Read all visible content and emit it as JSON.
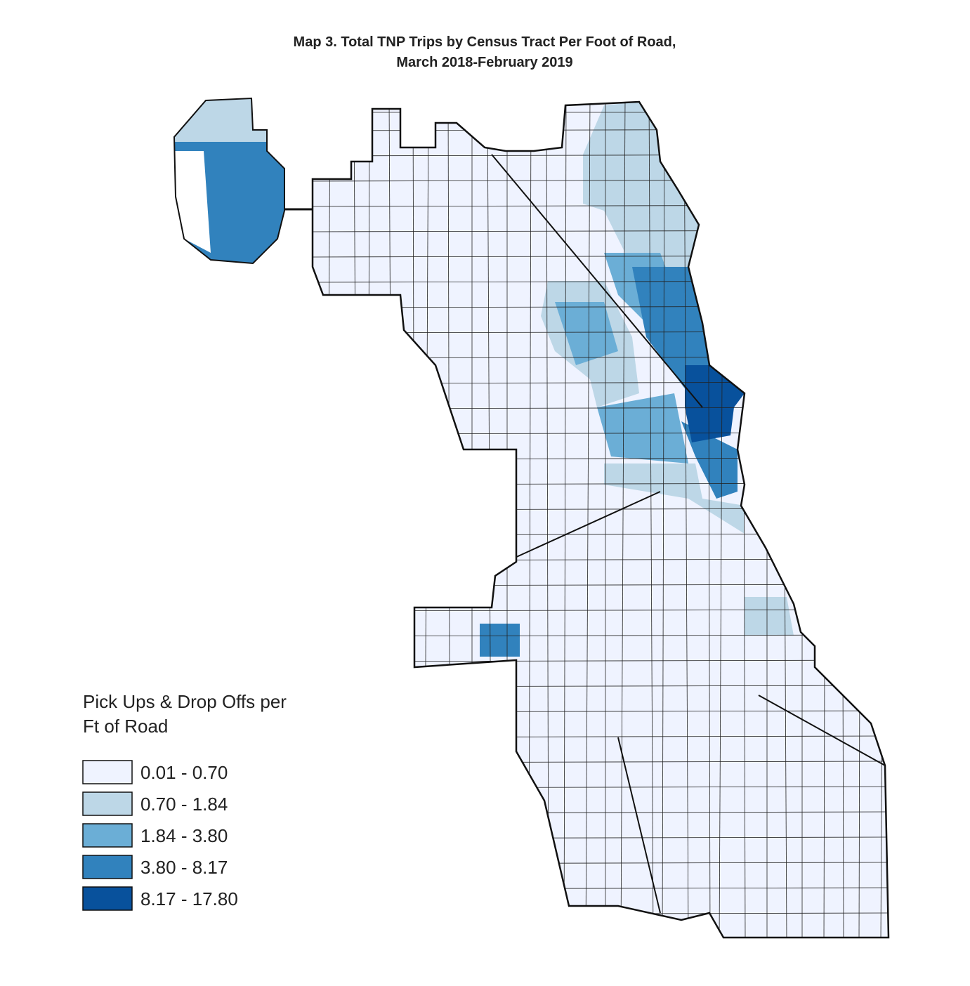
{
  "title": {
    "lines": [
      "Map 3. Total TNP Trips by Census Tract Per Foot of Road,",
      "March 2018-February 2019"
    ]
  },
  "legend": {
    "title_lines": [
      "Pick Ups & Drop Offs per",
      "Ft of Road"
    ],
    "items": [
      {
        "label": "0.01 - 0.70",
        "color": "#eff3ff"
      },
      {
        "label": "0.70 - 1.84",
        "color": "#bdd7e7"
      },
      {
        "label": "1.84 - 3.80",
        "color": "#6baed6"
      },
      {
        "label": "3.80 - 8.17",
        "color": "#3182bd"
      },
      {
        "label": "8.17 - 17.80",
        "color": "#08519c"
      }
    ]
  }
}
